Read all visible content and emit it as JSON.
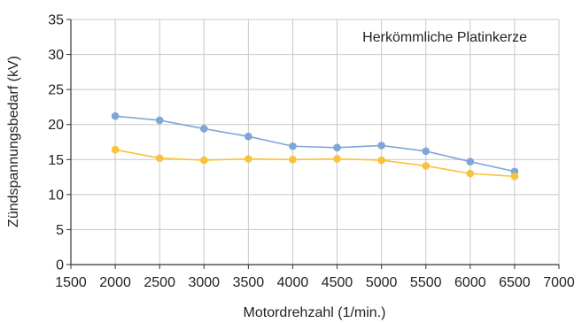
{
  "chart_data": {
    "type": "line",
    "title": "",
    "annotation": "Herkömmliche Platinkerze",
    "xlabel": "Motordrehzahl (1/min.)",
    "ylabel": "Zündspannungsbedarf (kV)",
    "xlim": [
      1500,
      7000
    ],
    "ylim": [
      0,
      35
    ],
    "x_ticks": [
      1500,
      2000,
      2500,
      3000,
      3500,
      4000,
      4500,
      5000,
      5500,
      6000,
      6500,
      7000
    ],
    "y_ticks": [
      0,
      5,
      10,
      15,
      20,
      25,
      30,
      35
    ],
    "grid": true,
    "x": [
      2000,
      2500,
      3000,
      3500,
      4000,
      4500,
      5000,
      5500,
      6000,
      6500
    ],
    "series": [
      {
        "color": "#7fa6d6",
        "values": [
          21.2,
          20.6,
          19.4,
          18.3,
          16.9,
          16.7,
          17.0,
          16.2,
          14.7,
          13.3
        ]
      },
      {
        "color": "#f9c23c",
        "values": [
          16.4,
          15.2,
          14.9,
          15.1,
          15.0,
          15.1,
          14.9,
          14.1,
          13.0,
          12.6
        ]
      }
    ]
  }
}
